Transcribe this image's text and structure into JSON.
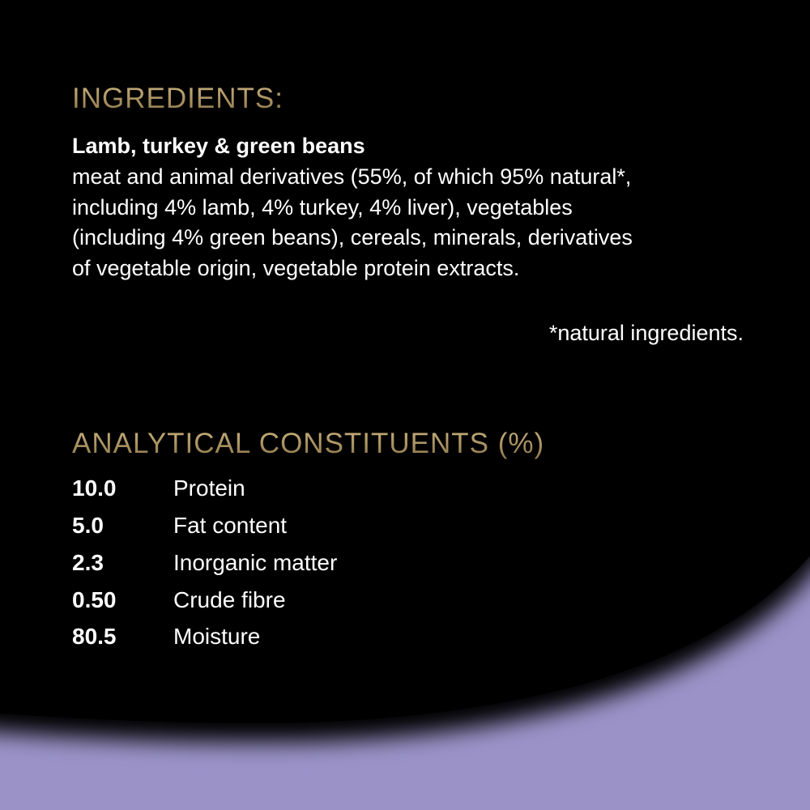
{
  "colors": {
    "background": "#000000",
    "accent": "#9b93c8",
    "heading": "#b59e6a"
  },
  "ingredients": {
    "heading": "INGREDIENTS:",
    "product": "Lamb, turkey & green beans",
    "lines": [
      "meat and animal derivatives (55%, of which 95% natural*,",
      "including 4% lamb, 4% turkey, 4% liver), vegetables",
      "(including 4% green beans), cereals, minerals, derivatives",
      "of vegetable origin, vegetable protein extracts."
    ],
    "footnote": "*natural ingredients."
  },
  "analytical": {
    "heading": "ANALYTICAL CONSTITUENTS (%)",
    "rows": [
      {
        "value": "10.0",
        "label": "Protein"
      },
      {
        "value": "5.0",
        "label": "Fat content"
      },
      {
        "value": "2.3",
        "label": "Inorganic matter"
      },
      {
        "value": "0.50",
        "label": "Crude fibre"
      },
      {
        "value": "80.5",
        "label": "Moisture"
      }
    ]
  }
}
